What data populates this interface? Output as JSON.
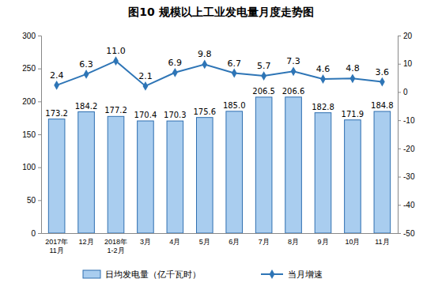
{
  "chart_data": {
    "type": "bar",
    "title": "图10 规模以上工业发电量月度走势图",
    "categories": [
      "2017年\n11月",
      "12月",
      "2018年\n1-2月",
      "3月",
      "4月",
      "5月",
      "6月",
      "7月",
      "8月",
      "9月",
      "10月",
      "11月"
    ],
    "series": [
      {
        "name": "日均发电量（亿千瓦时）",
        "type": "bar",
        "color": "#a9cdef",
        "values": [
          173.2,
          184.2,
          177.2,
          170.4,
          170.3,
          175.6,
          185.0,
          206.5,
          206.6,
          182.8,
          171.9,
          184.8
        ],
        "value_labels": [
          "173.2",
          "184.2",
          "177.2",
          "170.4",
          "170.3",
          "175.6",
          "185.0",
          "206.5",
          "206.6",
          "182.8",
          "171.9",
          "184.8"
        ]
      },
      {
        "name": "当月增速",
        "type": "line",
        "axis": "y2",
        "color": "#2e75b6",
        "marker": "diamond",
        "values": [
          2.4,
          6.3,
          11.0,
          2.1,
          6.9,
          9.8,
          6.7,
          5.7,
          7.3,
          4.6,
          4.8,
          3.6
        ],
        "value_labels": [
          "2.4",
          "6.3",
          "11.0",
          "2.1",
          "6.9",
          "9.8",
          "6.7",
          "5.7",
          "7.3",
          "4.6",
          "4.8",
          "3.6"
        ]
      }
    ],
    "ylim": [
      0,
      300
    ],
    "yticks": [
      0,
      50,
      100,
      150,
      200,
      250,
      300
    ],
    "y2lim": [
      -50,
      20
    ],
    "y2ticks": [
      -50,
      -40,
      -30,
      -20,
      -10,
      0,
      10,
      20
    ],
    "data_labels": true,
    "grid": false,
    "legend": "bottom"
  }
}
